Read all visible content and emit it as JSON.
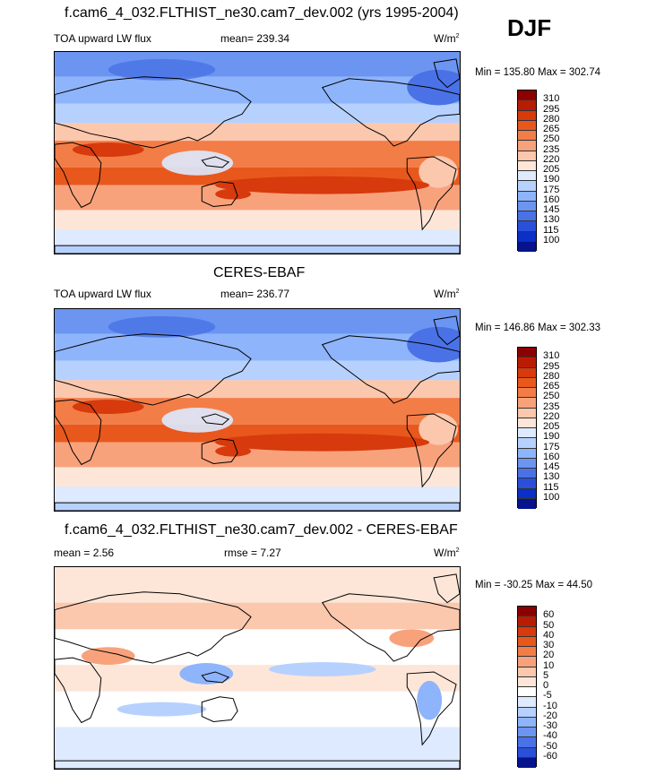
{
  "season": "DJF",
  "units_base": "W/m",
  "units_exp": "2",
  "panels": [
    {
      "title": "f.cam6_4_032.FLTHIST_ne30.cam7_dev.002 (yrs 1995-2004)",
      "left_label": "TOA upward LW flux",
      "center_label": "mean= 239.34",
      "minmax": "Min = 135.80 Max = 302.74",
      "levels": [
        "310",
        "295",
        "280",
        "265",
        "250",
        "235",
        "220",
        "205",
        "190",
        "175",
        "160",
        "145",
        "130",
        "115",
        "100"
      ],
      "colors": [
        "#8b0000",
        "#b81d04",
        "#d73a0c",
        "#e8581c",
        "#f37d47",
        "#f8a27c",
        "#fbc7ad",
        "#fde6d8",
        "#ddeaff",
        "#b7d1ff",
        "#8eb4fb",
        "#6b95f1",
        "#4a72e6",
        "#2a50d9",
        "#0a30c8",
        "#06138c"
      ]
    },
    {
      "title": "CERES-EBAF",
      "left_label": "TOA upward LW flux",
      "center_label": "mean= 236.77",
      "minmax": "Min = 146.86 Max = 302.33",
      "levels": [
        "310",
        "295",
        "280",
        "265",
        "250",
        "235",
        "220",
        "205",
        "190",
        "175",
        "160",
        "145",
        "130",
        "115",
        "100"
      ],
      "colors": [
        "#8b0000",
        "#b81d04",
        "#d73a0c",
        "#e8581c",
        "#f37d47",
        "#f8a27c",
        "#fbc7ad",
        "#fde6d8",
        "#ddeaff",
        "#b7d1ff",
        "#8eb4fb",
        "#6b95f1",
        "#4a72e6",
        "#2a50d9",
        "#0a30c8",
        "#06138c"
      ]
    },
    {
      "title": "f.cam6_4_032.FLTHIST_ne30.cam7_dev.002 - CERES-EBAF",
      "left_label": "mean =   2.56",
      "center_label": "rmse =   7.27",
      "minmax": "Min = -30.25 Max =  44.50",
      "levels": [
        "60",
        "50",
        "40",
        "30",
        "20",
        "10",
        "5",
        "0",
        "-5",
        "-10",
        "-20",
        "-30",
        "-40",
        "-50",
        "-60"
      ],
      "colors": [
        "#8b0000",
        "#b81d04",
        "#d73a0c",
        "#e8581c",
        "#f37d47",
        "#f8a27c",
        "#fbc7ad",
        "#fde6d8",
        "#ffffff",
        "#ddeaff",
        "#b7d1ff",
        "#8eb4fb",
        "#6b95f1",
        "#4a72e6",
        "#2a50d9",
        "#06138c"
      ]
    }
  ]
}
